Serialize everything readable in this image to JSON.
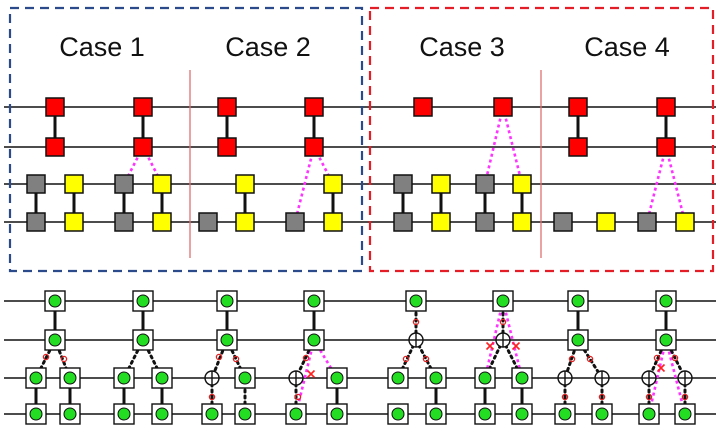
{
  "cases": [
    {
      "label": "Case 1"
    },
    {
      "label": "Case 2"
    },
    {
      "label": "Case 3"
    },
    {
      "label": "Case 4"
    }
  ],
  "colors": {
    "blue_frame": "#2b4a8c",
    "red_frame": "#e41e26",
    "separator": "#e07070",
    "red_node": "#ff0000",
    "gray_node": "#808080",
    "yellow_node": "#ffff00",
    "green_dot": "#22dd22",
    "magenta_link": "#ff33ff"
  },
  "icons": {
    "boxed_node": "green-dot-in-square",
    "junction": "circled-plus",
    "removed": "red-x",
    "marker": "small-red-circle"
  }
}
